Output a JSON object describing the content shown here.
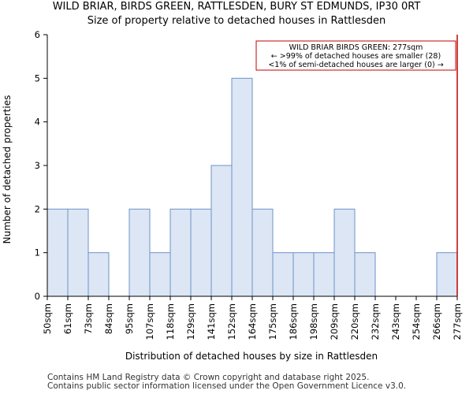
{
  "title": "WILD BRIAR, BIRDS GREEN, RATTLESDEN, BURY ST EDMUNDS, IP30 0RT",
  "subtitle": "Size of property relative to detached houses in Rattlesden",
  "footer": {
    "line1": "Contains HM Land Registry data © Crown copyright and database right 2025.",
    "line2": "Contains public sector information licensed under the Open Government Licence v3.0."
  },
  "colors": {
    "bar_fill": "#dce6f5",
    "bar_stroke": "#6e93c8",
    "marker": "#c00000",
    "annotation_border": "#c00000"
  },
  "chart_data": {
    "type": "bar",
    "title": "WILD BRIAR, BIRDS GREEN, RATTLESDEN, BURY ST EDMUNDS, IP30 0RT",
    "subtitle": "Size of property relative to detached houses in Rattlesden",
    "xlabel": "Distribution of detached houses by size in Rattlesden",
    "ylabel": "Number of detached properties",
    "x_tick_labels": [
      "50sqm",
      "61sqm",
      "73sqm",
      "84sqm",
      "95sqm",
      "107sqm",
      "118sqm",
      "129sqm",
      "141sqm",
      "152sqm",
      "164sqm",
      "175sqm",
      "186sqm",
      "198sqm",
      "209sqm",
      "220sqm",
      "232sqm",
      "243sqm",
      "254sqm",
      "266sqm",
      "277sqm"
    ],
    "values": [
      2,
      2,
      1,
      0,
      2,
      1,
      2,
      2,
      3,
      5,
      2,
      1,
      1,
      1,
      2,
      1,
      0,
      0,
      0,
      1
    ],
    "ylim": [
      0,
      6
    ],
    "y_ticks": [
      0,
      1,
      2,
      3,
      4,
      5,
      6
    ],
    "grid": false,
    "marker_value": "277sqm",
    "annotation": {
      "line1": "WILD BRIAR BIRDS GREEN: 277sqm",
      "line2": "← >99% of detached houses are smaller (28)",
      "line3": "<1% of semi-detached houses are larger (0) →"
    }
  }
}
